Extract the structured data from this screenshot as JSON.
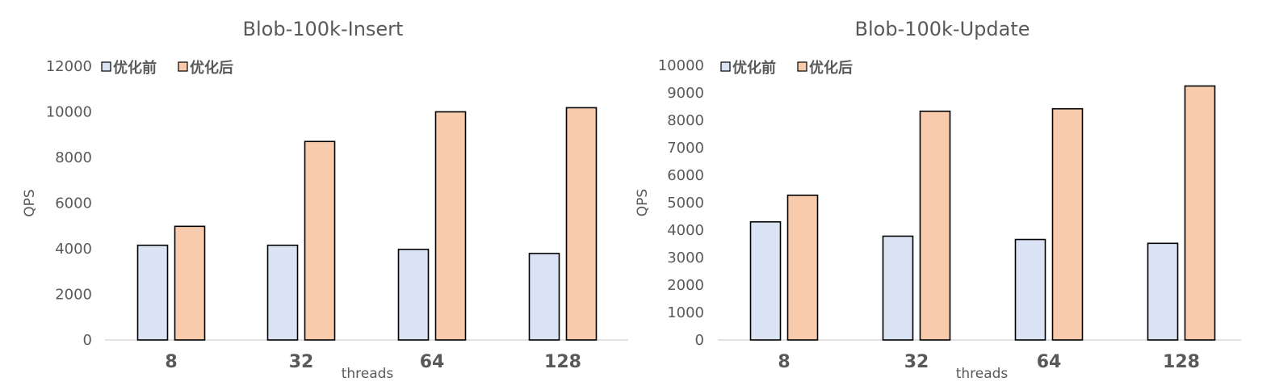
{
  "chart_data": [
    {
      "type": "bar",
      "title": "Blob-100k-Insert",
      "xlabel": "threads",
      "ylabel": "QPS",
      "categories": [
        "8",
        "32",
        "64",
        "128"
      ],
      "series": [
        {
          "name": "优化前",
          "values": [
            4150,
            4150,
            3970,
            3790
          ],
          "color": "#dae3f3"
        },
        {
          "name": "优化后",
          "values": [
            4980,
            8700,
            10000,
            10180
          ],
          "color": "#f8cbad"
        }
      ],
      "ylim": [
        0,
        12000
      ],
      "yticks": [
        "0",
        "2000",
        "4000",
        "6000",
        "8000",
        "10000",
        "12000"
      ],
      "grid": false,
      "legend_position": "top-left"
    },
    {
      "type": "bar",
      "title": "Blob-100k-Update",
      "xlabel": "threads",
      "ylabel": "QPS",
      "categories": [
        "8",
        "32",
        "64",
        "128"
      ],
      "series": [
        {
          "name": "优化前",
          "values": [
            4300,
            3780,
            3660,
            3520
          ],
          "color": "#dae3f3"
        },
        {
          "name": "优化后",
          "values": [
            5270,
            8330,
            8420,
            9250
          ],
          "color": "#f8cbad"
        }
      ],
      "ylim": [
        0,
        10000
      ],
      "yticks": [
        "0",
        "1000",
        "2000",
        "3000",
        "4000",
        "5000",
        "6000",
        "7000",
        "8000",
        "9000",
        "10000"
      ],
      "grid": false,
      "legend_position": "top-left"
    }
  ]
}
